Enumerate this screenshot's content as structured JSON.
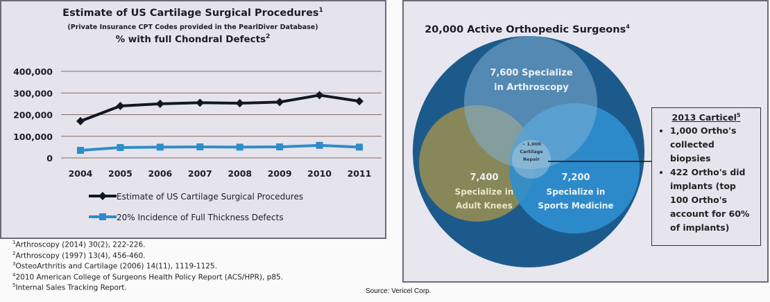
{
  "chart_data": [
    {
      "type": "line",
      "title": "Estimate of US Cartilage Surgical Procedures",
      "title_sup": "1",
      "subtitle": "(Private Insurance CPT Codes provided in the PearlDiver Database)",
      "subtitle2": "% with full Chondral Defects",
      "subtitle2_sup": "2",
      "categories": [
        "2004",
        "2005",
        "2006",
        "2007",
        "2008",
        "2009",
        "2010",
        "2011"
      ],
      "yticks": [
        "0",
        "100,000",
        "200,000",
        "300,000",
        "400,000"
      ],
      "ylim": [
        0,
        400000
      ],
      "grid": true,
      "legend_placement": "bottom",
      "series": [
        {
          "name": "Estimate of US Cartilage Surgical Procedures",
          "color": "#111820",
          "marker": "diamond",
          "values": [
            170000,
            240000,
            250000,
            255000,
            253000,
            258000,
            290000,
            262000
          ]
        },
        {
          "name": "20% Incidence of Full Thickness Defects",
          "color": "#2e8cc8",
          "marker": "square",
          "values": [
            35000,
            48000,
            50000,
            51000,
            50000,
            51000,
            58000,
            50000
          ]
        }
      ]
    },
    {
      "type": "venn",
      "title": "20,000 Active Orthopedic Surgeons",
      "title_sup": "4",
      "sets": [
        {
          "label_1": "7,600 Specialize",
          "label_2": "in Arthroscopy",
          "color": "#7fb0d4"
        },
        {
          "label_1": "7,400",
          "label_2": "Specialize in",
          "label_3": "Adult Knees",
          "color": "#8d8a56"
        },
        {
          "label_1": "7,200",
          "label_2": "Specialize in",
          "label_3": "Sports Medicine",
          "color": "#2f8fd0"
        }
      ],
      "outer_color": "#1d5a8c",
      "intersection": {
        "line1": "~ 1,000",
        "line2": "Cartilage",
        "line3": "Repair"
      }
    }
  ],
  "callout": {
    "title": "2013 Carticel",
    "title_sup": "5",
    "bullets": [
      "1,000 Ortho's collected biopsies",
      "422 Ortho's did implants (top 100 Ortho's account for 60% of implants)"
    ]
  },
  "footnotes": [
    {
      "n": "1",
      "text": "Arthroscopy (2014) 30(2), 222-226."
    },
    {
      "n": "2",
      "text": "Arthroscopy (1997) 13(4), 456-460."
    },
    {
      "n": "3",
      "text": "OsteoArthritis and Cartilage (2006) 14(11), 1119-1125."
    },
    {
      "n": "4",
      "text": "2010 American College of Surgeons Health Policy Report (ACS/HPR), p85."
    },
    {
      "n": "5",
      "text": "Internal Sales Tracking Report."
    }
  ],
  "source": "Source: Vericel Corp."
}
